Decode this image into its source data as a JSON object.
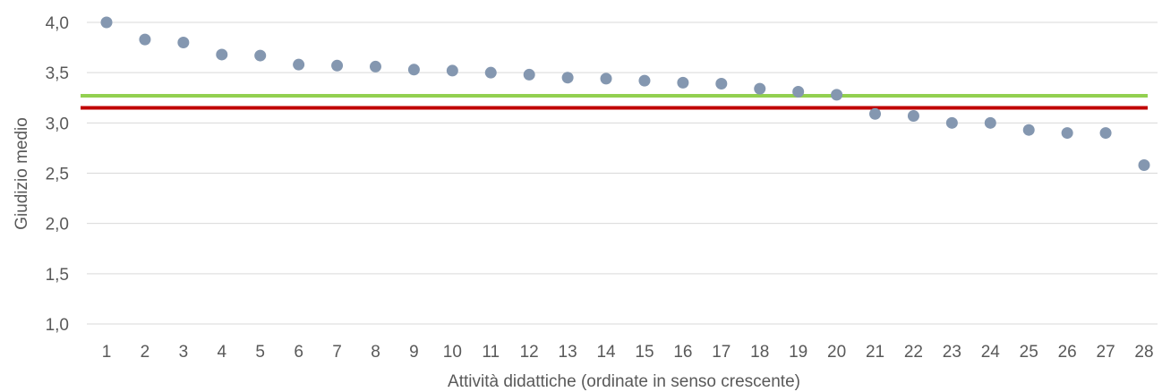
{
  "chart_data": {
    "type": "scatter",
    "xlabel": "Attività didattiche (ordinate in senso crescente)",
    "ylabel": "Giudizio medio",
    "ylim": [
      1.0,
      4.0
    ],
    "xlim": [
      1,
      28
    ],
    "grid": true,
    "legend": "none",
    "x": [
      1,
      2,
      3,
      4,
      5,
      6,
      7,
      8,
      9,
      10,
      11,
      12,
      13,
      14,
      15,
      16,
      17,
      18,
      19,
      20,
      21,
      22,
      23,
      24,
      25,
      26,
      27,
      28
    ],
    "x_tick_labels": [
      "1",
      "2",
      "3",
      "4",
      "5",
      "6",
      "7",
      "8",
      "9",
      "10",
      "11",
      "12",
      "13",
      "14",
      "15",
      "16",
      "17",
      "18",
      "19",
      "20",
      "21",
      "22",
      "23",
      "24",
      "25",
      "26",
      "27",
      "28"
    ],
    "y_tick_labels": [
      "1,0",
      "1,5",
      "2,0",
      "2,5",
      "3,0",
      "3,5",
      "4,0"
    ],
    "y_ticks": [
      1.0,
      1.5,
      2.0,
      2.5,
      3.0,
      3.5,
      4.0
    ],
    "series": [
      {
        "values": [
          4.0,
          3.83,
          3.8,
          3.68,
          3.67,
          3.58,
          3.57,
          3.56,
          3.53,
          3.52,
          3.5,
          3.48,
          3.45,
          3.44,
          3.42,
          3.4,
          3.39,
          3.34,
          3.31,
          3.28,
          3.09,
          3.07,
          3.0,
          3.0,
          2.93,
          2.9,
          2.9,
          2.58
        ],
        "color": "#8497b0"
      }
    ],
    "reference_lines": [
      {
        "value": 3.27,
        "color": "#92d050"
      },
      {
        "value": 3.15,
        "color": "#c00000"
      }
    ],
    "gridline_color": "#d9d9d9"
  }
}
